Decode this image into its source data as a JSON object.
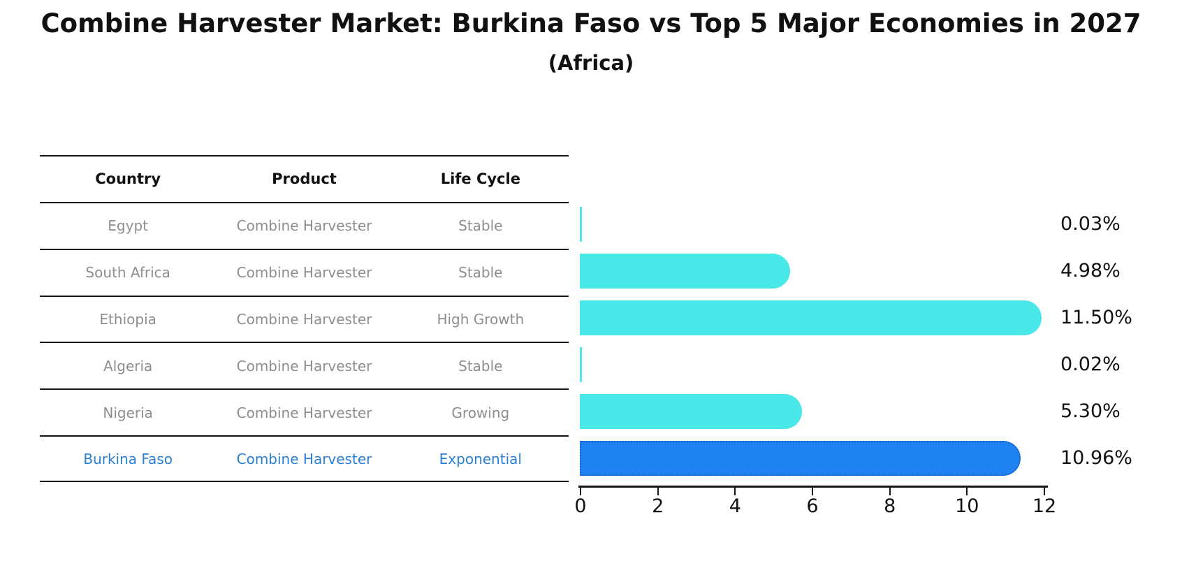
{
  "header": {
    "title": "Combine Harvester Market: Burkina Faso vs Top 5 Major Economies in 2027",
    "subtitle": "(Africa)"
  },
  "table": {
    "headers": [
      "Country",
      "Product",
      "Life Cycle"
    ],
    "rows": [
      {
        "country": "Egypt",
        "product": "Combine Harvester",
        "life_cycle": "Stable",
        "highlighted": false
      },
      {
        "country": "South Africa",
        "product": "Combine Harvester",
        "life_cycle": "Stable",
        "highlighted": false
      },
      {
        "country": "Ethiopia",
        "product": "Combine Harvester",
        "life_cycle": "High Growth",
        "highlighted": false
      },
      {
        "country": "Algeria",
        "product": "Combine Harvester",
        "life_cycle": "Stable",
        "highlighted": false
      },
      {
        "country": "Nigeria",
        "product": "Combine Harvester",
        "life_cycle": "Growing",
        "highlighted": false
      },
      {
        "country": "Burkina Faso",
        "product": "Combine Harvester",
        "life_cycle": "Exponential",
        "highlighted": true
      }
    ]
  },
  "chart_data": {
    "type": "bar",
    "orientation": "horizontal",
    "title": "Combine Harvester Market: Burkina Faso vs Top 5 Major Economies in 2027",
    "subtitle": "(Africa)",
    "categories": [
      "Egypt",
      "South Africa",
      "Ethiopia",
      "Algeria",
      "Nigeria",
      "Burkina Faso"
    ],
    "values": [
      0.03,
      4.98,
      11.5,
      0.02,
      5.3,
      10.96
    ],
    "value_labels": [
      "0.03%",
      "4.98%",
      "11.50%",
      "0.02%",
      "5.30%",
      "10.96%"
    ],
    "xticks": [
      0,
      2,
      4,
      6,
      8,
      10,
      12
    ],
    "xlim": [
      0,
      12
    ],
    "xlabel": "",
    "ylabel": "",
    "grid": false,
    "legend": false,
    "highlight_index": 5,
    "bar_color": "#4ae8e8",
    "highlight_color": "#1e82f0",
    "highlight_border_color": "#1565c0",
    "axis_color": "#151515",
    "highlight_text_color": "#2a7fd4"
  }
}
